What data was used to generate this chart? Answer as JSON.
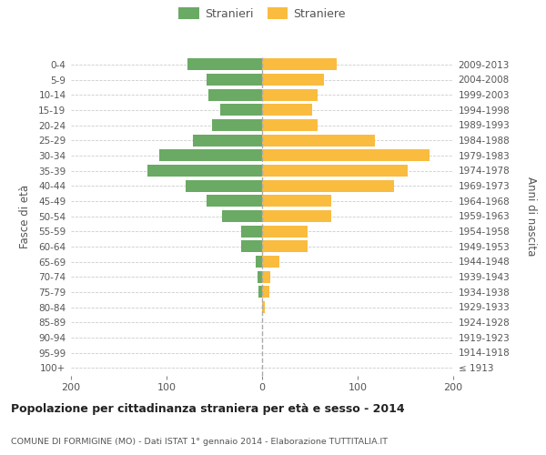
{
  "age_groups": [
    "100+",
    "95-99",
    "90-94",
    "85-89",
    "80-84",
    "75-79",
    "70-74",
    "65-69",
    "60-64",
    "55-59",
    "50-54",
    "45-49",
    "40-44",
    "35-39",
    "30-34",
    "25-29",
    "20-24",
    "15-19",
    "10-14",
    "5-9",
    "0-4"
  ],
  "birth_years": [
    "≤ 1913",
    "1914-1918",
    "1919-1923",
    "1924-1928",
    "1929-1933",
    "1934-1938",
    "1939-1943",
    "1944-1948",
    "1949-1953",
    "1954-1958",
    "1959-1963",
    "1964-1968",
    "1969-1973",
    "1974-1978",
    "1979-1983",
    "1984-1988",
    "1989-1993",
    "1994-1998",
    "1999-2003",
    "2004-2008",
    "2009-2013"
  ],
  "males": [
    0,
    0,
    0,
    0,
    0,
    4,
    5,
    7,
    22,
    22,
    42,
    58,
    80,
    120,
    108,
    72,
    52,
    44,
    56,
    58,
    78
  ],
  "females": [
    0,
    0,
    0,
    0,
    3,
    8,
    9,
    18,
    48,
    48,
    72,
    72,
    138,
    152,
    175,
    118,
    58,
    52,
    58,
    65,
    78
  ],
  "male_color": "#6aaa64",
  "female_color": "#f9bc3f",
  "title": "Popolazione per cittadinanza straniera per età e sesso - 2014",
  "subtitle": "COMUNE DI FORMIGINE (MO) - Dati ISTAT 1° gennaio 2014 - Elaborazione TUTTITALIA.IT",
  "ylabel_left": "Fasce di età",
  "ylabel_right": "Anni di nascita",
  "legend_male": "Stranieri",
  "legend_female": "Straniere",
  "xlim": 200,
  "background_color": "#ffffff",
  "grid_color": "#cccccc",
  "tick_color": "#888888",
  "label_color": "#555555"
}
